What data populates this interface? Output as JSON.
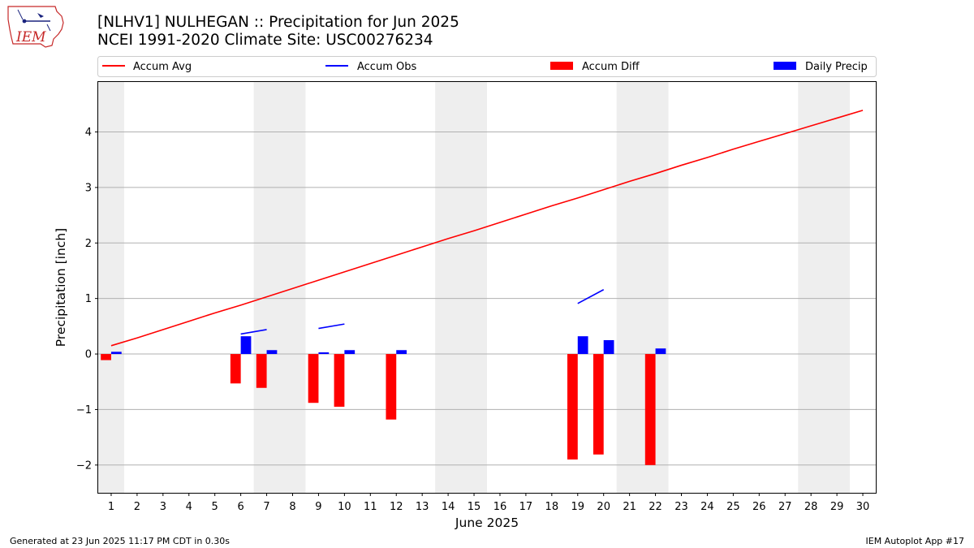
{
  "title_line1": "[NLHV1] NULHEGAN :: Precipitation for Jun 2025",
  "title_line2": "NCEI 1991-2020 Climate Site: USC00276234",
  "footer_left": "Generated at 23 Jun 2025 11:17 PM CDT in 0.30s",
  "footer_right": "IEM Autoplot App #17",
  "logo_text": "IEM",
  "colors": {
    "avg": "#ff0000",
    "obs": "#0000ff",
    "diff": "#ff0000",
    "daily": "#0000ff",
    "weekend": "#eeeeee",
    "grid": "#b0b0b0"
  },
  "chart_data": {
    "type": "bar",
    "xlabel": "June 2025",
    "ylabel": "Precipitation [inch]",
    "xlim": [
      0.5,
      30.5
    ],
    "ylim": [
      -2.5,
      4.9
    ],
    "yticks": [
      -2,
      -1,
      0,
      1,
      2,
      3,
      4
    ],
    "ytick_labels": [
      "−2",
      "−1",
      "0",
      "1",
      "2",
      "3",
      "4"
    ],
    "xticks": [
      1,
      2,
      3,
      4,
      5,
      6,
      7,
      8,
      9,
      10,
      11,
      12,
      13,
      14,
      15,
      16,
      17,
      18,
      19,
      20,
      21,
      22,
      23,
      24,
      25,
      26,
      27,
      28,
      29,
      30
    ],
    "grid": "horizontal",
    "legend_position": "top",
    "weekend_days": [
      1,
      7,
      8,
      14,
      15,
      21,
      22,
      28,
      29
    ],
    "legend": [
      "Accum Avg",
      "Accum Obs",
      "Accum Diff",
      "Daily Precip"
    ],
    "series": [
      {
        "name": "Accum Avg",
        "type": "line",
        "x": [
          1,
          2,
          3,
          4,
          5,
          6,
          7,
          8,
          9,
          10,
          11,
          12,
          13,
          14,
          15,
          16,
          17,
          18,
          19,
          20,
          21,
          22,
          23,
          24,
          25,
          26,
          27,
          28,
          29,
          30
        ],
        "values": [
          0.15,
          0.29,
          0.44,
          0.59,
          0.74,
          0.88,
          1.03,
          1.18,
          1.33,
          1.48,
          1.63,
          1.78,
          1.93,
          2.08,
          2.22,
          2.37,
          2.52,
          2.67,
          2.81,
          2.96,
          3.11,
          3.25,
          3.4,
          3.54,
          3.69,
          3.83,
          3.97,
          4.11,
          4.25,
          4.39
        ]
      },
      {
        "name": "Accum Obs",
        "type": "line",
        "segments": [
          {
            "x": [
              6,
              7
            ],
            "values": [
              0.36,
              0.44
            ]
          },
          {
            "x": [
              9,
              10
            ],
            "values": [
              0.46,
              0.54
            ]
          },
          {
            "x": [
              19,
              20
            ],
            "values": [
              0.91,
              1.16
            ]
          }
        ]
      },
      {
        "name": "Accum Diff",
        "type": "bar",
        "x": [
          1,
          6,
          7,
          9,
          10,
          12,
          19,
          20,
          22
        ],
        "values": [
          -0.11,
          -0.53,
          -0.61,
          -0.88,
          -0.95,
          -1.18,
          -1.9,
          -1.81,
          -2.0
        ]
      },
      {
        "name": "Daily Precip",
        "type": "bar",
        "x": [
          1,
          6,
          7,
          9,
          10,
          12,
          19,
          20,
          22
        ],
        "values": [
          0.04,
          0.32,
          0.07,
          0.03,
          0.07,
          0.07,
          0.32,
          0.25,
          0.1
        ]
      }
    ]
  }
}
